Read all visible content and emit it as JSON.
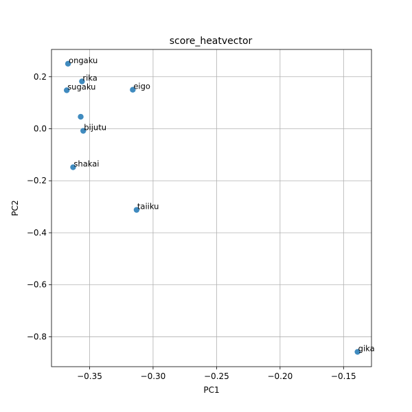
{
  "chart_data": {
    "type": "scatter",
    "title": "score_heatvector",
    "xlabel": "PC1",
    "ylabel": "PC2",
    "xlim": [
      -0.38,
      -0.128
    ],
    "ylim": [
      -0.915,
      0.305
    ],
    "grid": true,
    "marker_color": "#1f77b4",
    "x_ticks": [
      {
        "value": -0.35,
        "label": "−0.35"
      },
      {
        "value": -0.3,
        "label": "−0.30"
      },
      {
        "value": -0.25,
        "label": "−0.25"
      },
      {
        "value": -0.2,
        "label": "−0.20"
      },
      {
        "value": -0.15,
        "label": "−0.15"
      }
    ],
    "y_ticks": [
      {
        "value": 0.2,
        "label": "0.2"
      },
      {
        "value": 0.0,
        "label": "0.0"
      },
      {
        "value": -0.2,
        "label": "−0.2"
      },
      {
        "value": -0.4,
        "label": "−0.4"
      },
      {
        "value": -0.6,
        "label": "−0.6"
      },
      {
        "value": -0.8,
        "label": "−0.8"
      }
    ],
    "points": [
      {
        "label": "ongaku",
        "x": -0.367,
        "y": 0.25
      },
      {
        "label": "rika",
        "x": -0.356,
        "y": 0.182
      },
      {
        "label": "sugaku",
        "x": -0.368,
        "y": 0.148
      },
      {
        "label": "eigo",
        "x": -0.316,
        "y": 0.15
      },
      {
        "label": "",
        "x": -0.357,
        "y": 0.046
      },
      {
        "label": "bijutu",
        "x": -0.355,
        "y": -0.008
      },
      {
        "label": "shakai",
        "x": -0.363,
        "y": -0.148
      },
      {
        "label": "taiiku",
        "x": -0.313,
        "y": -0.312
      },
      {
        "label": "gika",
        "x": -0.139,
        "y": -0.858
      }
    ]
  }
}
